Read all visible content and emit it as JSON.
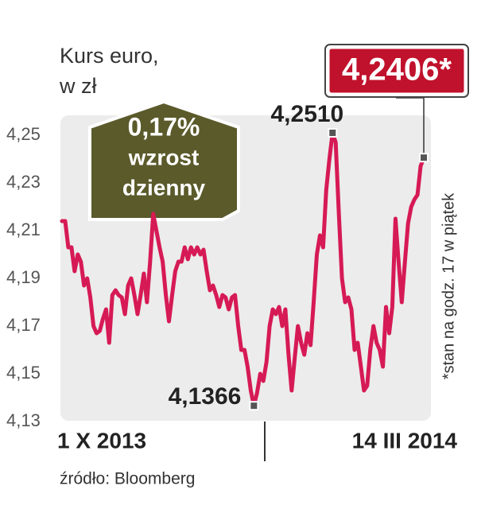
{
  "chart_data": {
    "type": "line",
    "title": "Kurs euro,",
    "subtitle": "w zł",
    "badge": [
      "0,17%",
      "wzrost",
      "dzienny"
    ],
    "note": "*stan na godz. 17 w piątek",
    "source": "źródło: Bloomberg",
    "color": "#d61a55",
    "categories": [
      "1 X 2013",
      null,
      null,
      null,
      null,
      null,
      null,
      null,
      null,
      null,
      null,
      null,
      null,
      null,
      null,
      null,
      null,
      null,
      null,
      null,
      null,
      null,
      null,
      null,
      null,
      null,
      null,
      null,
      null,
      null,
      null,
      null,
      null,
      null,
      null,
      null,
      null,
      null,
      null,
      null,
      null,
      null,
      null,
      null,
      null,
      null,
      null,
      null,
      null,
      null,
      null,
      null,
      null,
      null,
      null,
      null,
      null,
      null,
      null,
      null,
      null,
      null,
      null,
      null,
      null,
      null,
      null,
      null,
      null,
      null,
      null,
      null,
      null,
      null,
      null,
      null,
      null,
      null,
      null,
      null,
      null,
      null,
      null,
      null,
      null,
      null,
      null,
      null,
      null,
      null,
      null,
      null,
      null,
      null,
      null,
      null,
      null,
      null,
      null,
      null,
      null,
      null,
      null,
      null,
      null,
      null,
      null,
      null,
      null,
      null,
      null,
      null,
      null,
      null,
      null,
      "14 III 2014"
    ],
    "values": [
      4.214,
      4.214,
      4.203,
      4.203,
      4.193,
      4.2,
      4.197,
      4.187,
      4.19,
      4.182,
      4.17,
      4.167,
      4.168,
      4.173,
      4.177,
      4.163,
      4.183,
      4.185,
      4.183,
      4.182,
      4.175,
      4.187,
      4.19,
      4.183,
      4.175,
      4.183,
      4.192,
      4.18,
      4.197,
      4.217,
      4.21,
      4.203,
      4.197,
      4.183,
      4.172,
      4.183,
      4.193,
      4.197,
      4.197,
      4.203,
      4.198,
      4.203,
      4.2,
      4.203,
      4.2,
      4.202,
      4.193,
      4.185,
      4.187,
      4.183,
      4.178,
      4.183,
      4.182,
      4.177,
      4.182,
      4.183,
      4.17,
      4.16,
      4.16,
      4.153,
      4.143,
      4.1366,
      4.142,
      4.15,
      4.147,
      4.155,
      4.17,
      4.177,
      4.175,
      4.178,
      4.17,
      4.177,
      4.158,
      4.143,
      4.157,
      4.17,
      4.163,
      4.158,
      4.167,
      4.162,
      4.18,
      4.2,
      4.208,
      4.203,
      4.227,
      4.24,
      4.251,
      4.247,
      4.217,
      4.19,
      4.18,
      4.182,
      4.177,
      4.16,
      4.163,
      4.153,
      4.143,
      4.145,
      4.16,
      4.17,
      4.163,
      4.16,
      4.153,
      4.178,
      4.167,
      4.178,
      4.215,
      4.197,
      4.18,
      4.197,
      4.213,
      4.22,
      4.223,
      4.225,
      4.237,
      4.2406
    ],
    "value_labels": [
      null,
      null,
      null,
      null,
      null,
      null,
      null,
      null,
      null,
      null,
      null,
      null,
      null,
      null,
      null,
      null,
      null,
      null,
      null,
      null,
      null,
      null,
      null,
      null,
      null,
      null,
      null,
      null,
      null,
      null,
      null,
      null,
      null,
      null,
      null,
      null,
      null,
      null,
      null,
      null,
      null,
      null,
      null,
      null,
      null,
      null,
      null,
      null,
      null,
      null,
      null,
      null,
      null,
      null,
      null,
      null,
      null,
      null,
      null,
      null,
      null,
      "4,1366",
      null,
      null,
      null,
      null,
      null,
      null,
      null,
      null,
      null,
      null,
      null,
      null,
      null,
      null,
      null,
      null,
      null,
      null,
      null,
      null,
      null,
      null,
      null,
      null,
      "4,2510",
      null,
      null,
      null,
      null,
      null,
      null,
      null,
      null,
      null,
      null,
      null,
      null,
      null,
      null,
      null,
      null,
      null,
      null,
      null,
      null,
      null,
      null,
      null,
      null,
      null,
      null,
      null,
      null,
      "4,2406*"
    ],
    "ylim": [
      4.13,
      4.26
    ],
    "yticks": [
      {
        "value": 4.13,
        "label": "4,13"
      },
      {
        "value": 4.15,
        "label": "4,15"
      },
      {
        "value": 4.17,
        "label": "4,17"
      },
      {
        "value": 4.19,
        "label": "4,19"
      },
      {
        "value": 4.21,
        "label": "4,21"
      },
      {
        "value": 4.23,
        "label": "4,23"
      },
      {
        "value": 4.25,
        "label": "4,25"
      }
    ]
  }
}
